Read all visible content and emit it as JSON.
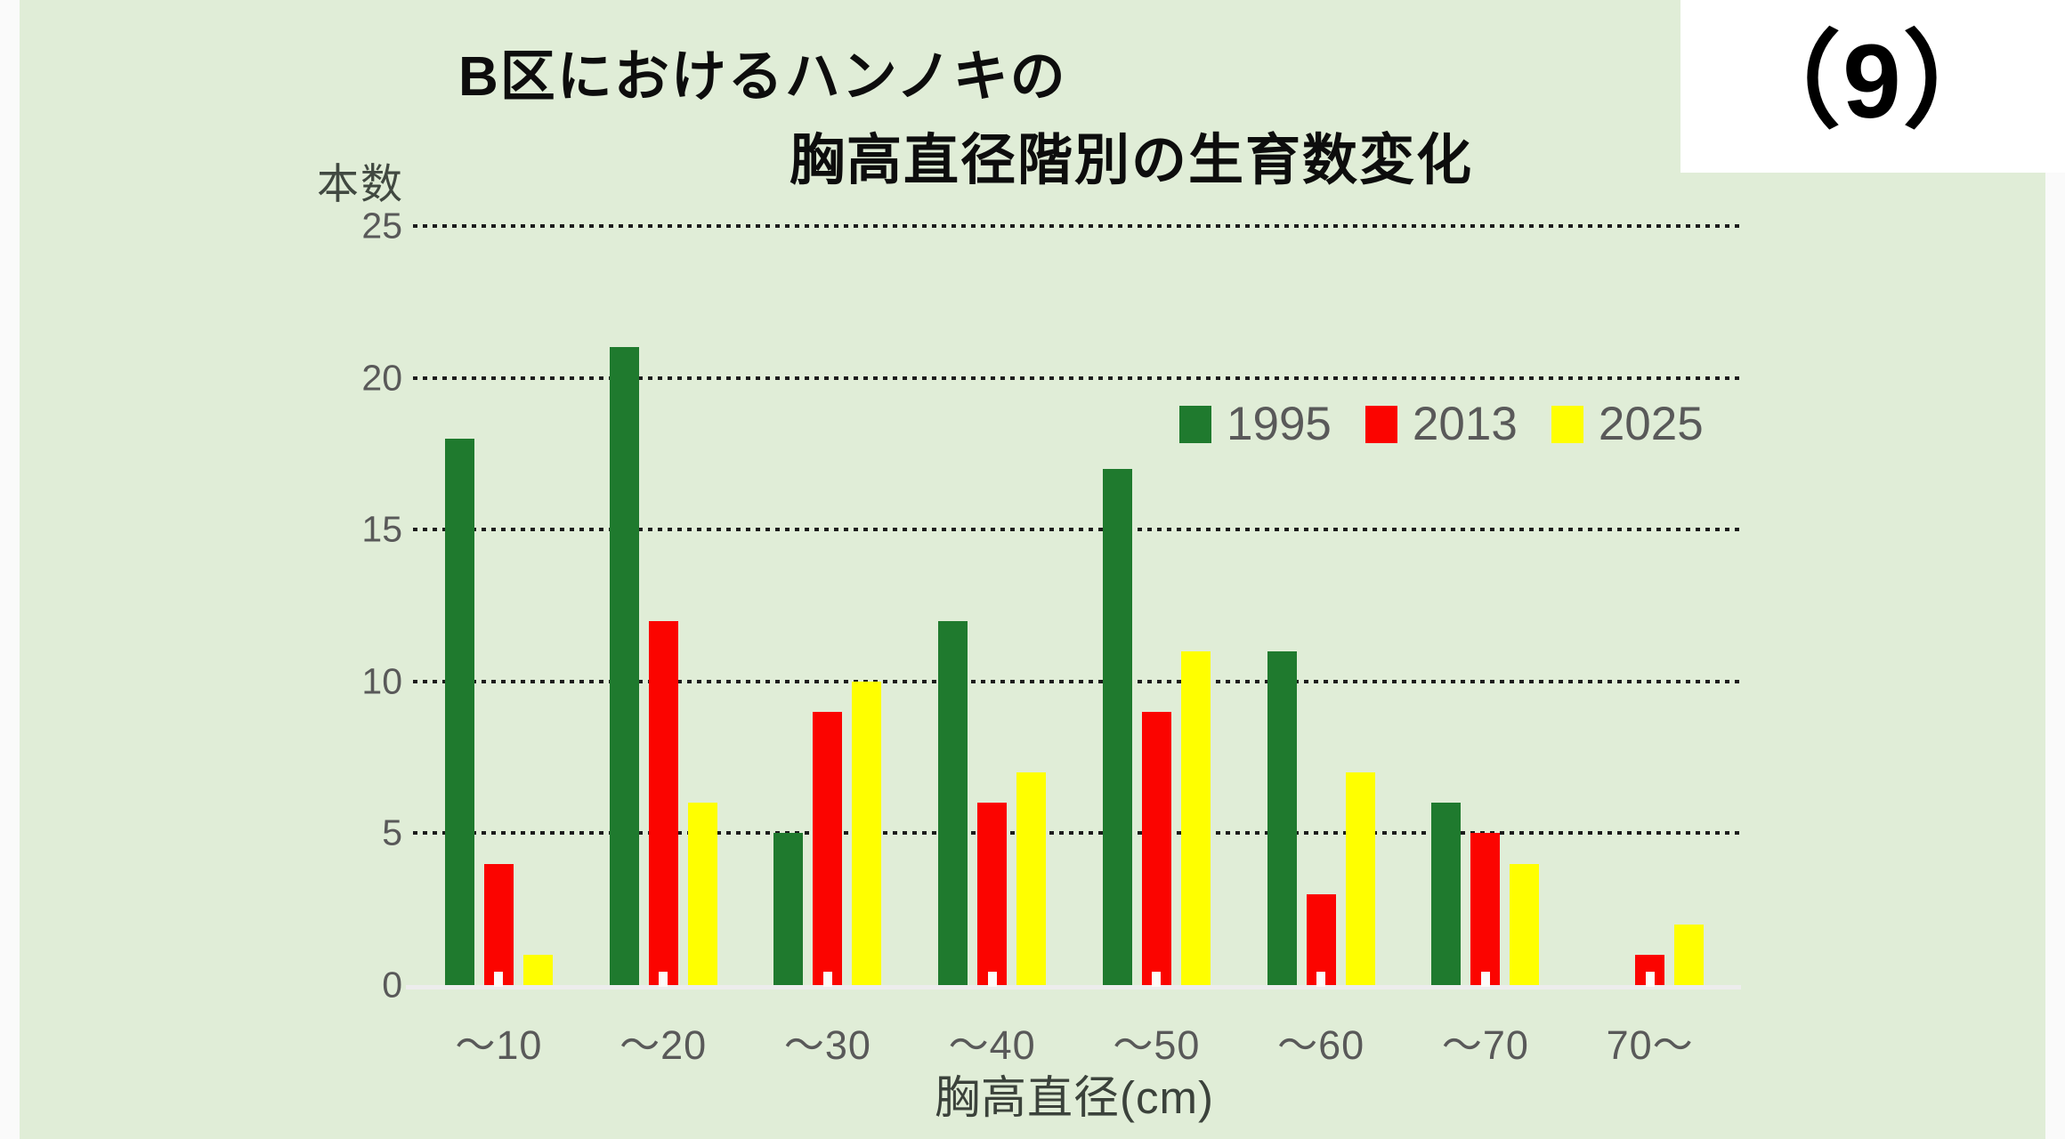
{
  "window": {
    "corner_label": "（9）"
  },
  "colors": {
    "page_margin": "#fafafa",
    "panel_background": "#e0edd7",
    "corner_box_background": "#ffffff",
    "title_text": "#0d0d0d",
    "tick_text": "#595959",
    "axis_label_text": "#3b423b",
    "grid_dot": "#1c1c1c",
    "baseline": "#ededed",
    "axis_tick_mark": "#fbfbf9"
  },
  "chart_data": {
    "type": "bar",
    "title_line1": "B区におけるハンノキの",
    "title_line2": "胸高直径階別の生育数変化",
    "y_axis_label": "本数",
    "x_axis_label": "胸高直径(cm)",
    "categories": [
      "～10",
      "～20",
      "～30",
      "～40",
      "～50",
      "～60",
      "～70",
      "70～"
    ],
    "series": [
      {
        "name": "1995",
        "color": "#1f7a2e",
        "values": [
          18,
          21,
          5,
          12,
          17,
          11,
          6,
          0
        ]
      },
      {
        "name": "2013",
        "color": "#fb0400",
        "values": [
          4,
          12,
          9,
          6,
          9,
          3,
          5,
          1
        ]
      },
      {
        "name": "2025",
        "color": "#ffff00",
        "values": [
          1,
          6,
          10,
          7,
          11,
          7,
          4,
          2
        ]
      }
    ],
    "ylim": [
      0,
      25
    ],
    "y_ticks": [
      0,
      5,
      10,
      15,
      20,
      25
    ],
    "grid": "horizontal-dotted",
    "legend_position": "top-right-inside-plot"
  }
}
